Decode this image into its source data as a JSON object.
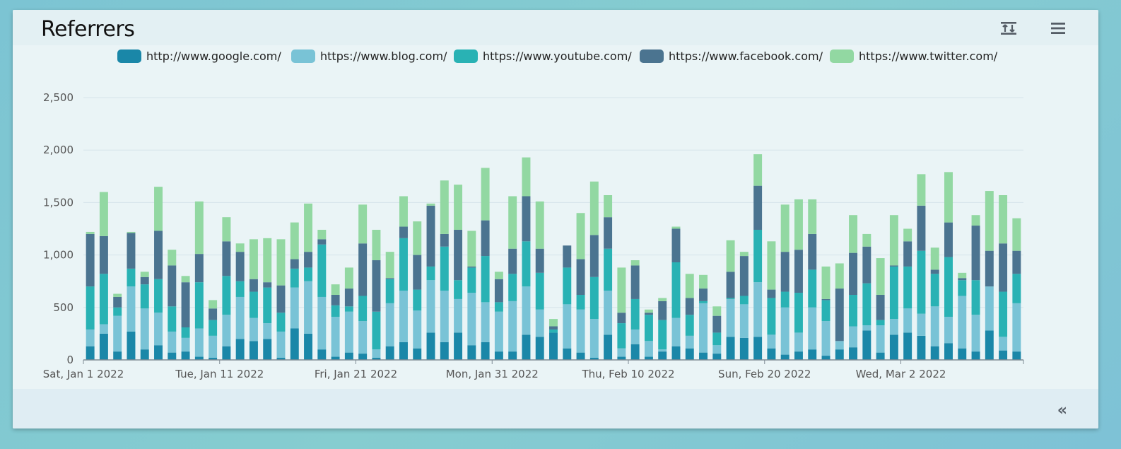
{
  "card": {
    "title": "Referrers"
  },
  "icons": {
    "swap": "swap-vertical-icon",
    "menu": "hamburger-menu-icon",
    "collapse": "double-chevron-left-icon"
  },
  "footer": {
    "collapse_label": "«"
  },
  "chart_data": {
    "type": "bar",
    "stacked": true,
    "ylim": [
      0,
      2500
    ],
    "yticks": [
      "0",
      "500",
      "1,000",
      "1,500",
      "2,000",
      "2,500"
    ],
    "ytick_values": [
      0,
      500,
      1000,
      1500,
      2000,
      2500
    ],
    "x_tick_labels": [
      {
        "index": 0,
        "label": "Sat, Jan 1 2022"
      },
      {
        "index": 10,
        "label": "Tue, Jan 11 2022"
      },
      {
        "index": 20,
        "label": "Fri, Jan 21 2022"
      },
      {
        "index": 30,
        "label": "Mon, Jan 31 2022"
      },
      {
        "index": 40,
        "label": "Thu, Feb 10 2022"
      },
      {
        "index": 50,
        "label": "Sun, Feb 20 2022"
      },
      {
        "index": 60,
        "label": "Wed, Mar 2 2022"
      }
    ],
    "grid": true,
    "legend_position": "top",
    "series": [
      {
        "name": "http://www.google.com/",
        "color": "#1a87a8",
        "values": [
          130,
          250,
          80,
          270,
          100,
          140,
          70,
          80,
          30,
          20,
          130,
          200,
          180,
          200,
          20,
          300,
          250,
          100,
          30,
          70,
          60,
          20,
          130,
          170,
          110,
          260,
          170,
          260,
          140,
          170,
          80,
          80,
          240,
          220,
          260,
          110,
          70,
          20,
          240,
          30,
          150,
          30,
          80,
          130,
          110,
          70,
          60,
          220,
          210,
          220,
          110,
          50,
          80,
          100,
          40,
          100,
          120,
          280,
          70,
          240,
          260,
          230,
          130,
          160,
          110,
          80,
          280,
          90,
          80
        ]
      },
      {
        "name": "https://www.blog.com/",
        "color": "#79c3d6",
        "values": [
          160,
          90,
          340,
          430,
          390,
          310,
          200,
          130,
          270,
          210,
          300,
          400,
          220,
          150,
          250,
          390,
          500,
          500,
          380,
          390,
          310,
          80,
          410,
          490,
          360,
          500,
          490,
          320,
          500,
          380,
          380,
          480,
          460,
          260,
          0,
          420,
          410,
          370,
          420,
          80,
          140,
          150,
          20,
          270,
          120,
          470,
          80,
          360,
          320,
          520,
          130,
          450,
          180,
          400,
          330,
          80,
          200,
          50,
          260,
          150,
          230,
          210,
          380,
          250,
          500,
          350,
          420,
          130,
          460
        ]
      },
      {
        "name": "https://www.youtube.com/",
        "color": "#29b2b4",
        "values": [
          410,
          480,
          80,
          170,
          230,
          320,
          240,
          100,
          440,
          150,
          370,
          150,
          250,
          340,
          180,
          180,
          130,
          500,
          110,
          50,
          240,
          360,
          230,
          500,
          200,
          130,
          420,
          180,
          240,
          440,
          90,
          260,
          430,
          350,
          30,
          350,
          140,
          400,
          400,
          240,
          290,
          250,
          280,
          530,
          200,
          20,
          120,
          10,
          80,
          500,
          350,
          150,
          380,
          360,
          200,
          0,
          300,
          400,
          50,
          500,
          400,
          600,
          310,
          570,
          150,
          330,
          0,
          430,
          280
        ]
      },
      {
        "name": "https://www.facebook.com/",
        "color": "#4b7490",
        "values": [
          500,
          360,
          100,
          340,
          70,
          460,
          390,
          430,
          270,
          110,
          330,
          280,
          120,
          50,
          260,
          90,
          150,
          50,
          100,
          170,
          500,
          490,
          10,
          110,
          330,
          580,
          120,
          480,
          10,
          340,
          220,
          240,
          430,
          230,
          30,
          210,
          340,
          400,
          300,
          100,
          320,
          20,
          180,
          320,
          160,
          120,
          160,
          250,
          380,
          420,
          80,
          380,
          410,
          340,
          10,
          500,
          400,
          350,
          240,
          10,
          240,
          430,
          40,
          330,
          20,
          520,
          340,
          460,
          220
        ]
      },
      {
        "name": "https://www.twitter.com/",
        "color": "#92d8a2",
        "values": [
          20,
          420,
          30,
          10,
          50,
          420,
          150,
          60,
          500,
          80,
          230,
          80,
          380,
          420,
          440,
          350,
          460,
          90,
          100,
          200,
          370,
          290,
          250,
          290,
          320,
          20,
          510,
          430,
          340,
          500,
          70,
          500,
          370,
          450,
          70,
          0,
          440,
          510,
          210,
          430,
          50,
          30,
          30,
          20,
          230,
          130,
          90,
          300,
          40,
          300,
          460,
          450,
          480,
          330,
          310,
          240,
          360,
          120,
          350,
          480,
          120,
          300,
          210,
          480,
          50,
          100,
          570,
          460,
          310
        ]
      }
    ]
  }
}
